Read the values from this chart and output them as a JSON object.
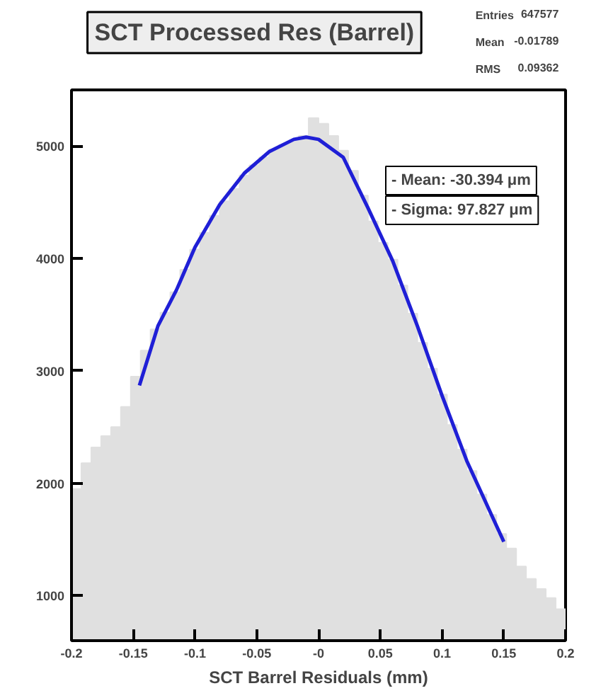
{
  "chart_data": {
    "type": "histogram",
    "title": "SCT Processed Res (Barrel)",
    "xlabel": "SCT Barrel Residuals (mm)",
    "xlim": [
      -0.2,
      0.2
    ],
    "ylim": [
      600,
      5500
    ],
    "xticks": [
      -0.2,
      -0.15,
      -0.1,
      -0.05,
      {
        "value": 0,
        "label": "-0"
      },
      0.05,
      0.1,
      0.15,
      0.2
    ],
    "yticks": [
      1000,
      2000,
      3000,
      4000,
      5000
    ],
    "grid": false,
    "series": [
      {
        "color": "#e0e0e0",
        "bins": [
          -0.2,
          -0.192,
          -0.184,
          -0.176,
          -0.168,
          -0.16,
          -0.152,
          -0.144,
          -0.136,
          -0.128,
          -0.12,
          -0.112,
          -0.104,
          -0.096,
          -0.088,
          -0.08,
          -0.072,
          -0.064,
          -0.056,
          -0.048,
          -0.04,
          -0.032,
          -0.024,
          -0.016,
          -0.008,
          0,
          0.008,
          0.016,
          0.024,
          0.032,
          0.04,
          0.048,
          0.056,
          0.064,
          0.072,
          0.08,
          0.088,
          0.096,
          0.104,
          0.112,
          0.12,
          0.128,
          0.136,
          0.144,
          0.152,
          0.16,
          0.168,
          0.176,
          0.184,
          0.192,
          0.2
        ],
        "values": [
          1950,
          2180,
          2320,
          2420,
          2500,
          2680,
          2950,
          3180,
          3370,
          3520,
          3700,
          3900,
          4080,
          4230,
          4380,
          4510,
          4620,
          4740,
          4830,
          4900,
          4970,
          5010,
          5050,
          5090,
          5250,
          5200,
          5090,
          4960,
          4780,
          4560,
          4330,
          4140,
          3990,
          3760,
          3510,
          3250,
          3020,
          2790,
          2520,
          2300,
          2110,
          1900,
          1720,
          1550,
          1420,
          1260,
          1150,
          1060,
          980,
          880
        ]
      },
      {
        "type": "line",
        "color": "#1f1fd6",
        "x": [
          -0.145,
          -0.13,
          -0.115,
          -0.1,
          -0.08,
          -0.06,
          -0.04,
          -0.02,
          -0.01,
          0,
          0.02,
          0.04,
          0.06,
          0.08,
          0.1,
          0.12,
          0.14,
          0.15
        ],
        "values": [
          2870,
          3400,
          3720,
          4100,
          4480,
          4760,
          4950,
          5060,
          5080,
          5060,
          4900,
          4450,
          3980,
          3400,
          2780,
          2200,
          1720,
          1480
        ]
      }
    ],
    "annotations": [
      "Entries 647577",
      "Mean -0.01789",
      "RMS 0.09362",
      "- Mean: -30.394 μm",
      "- Sigma: 97.827 μm"
    ]
  }
}
